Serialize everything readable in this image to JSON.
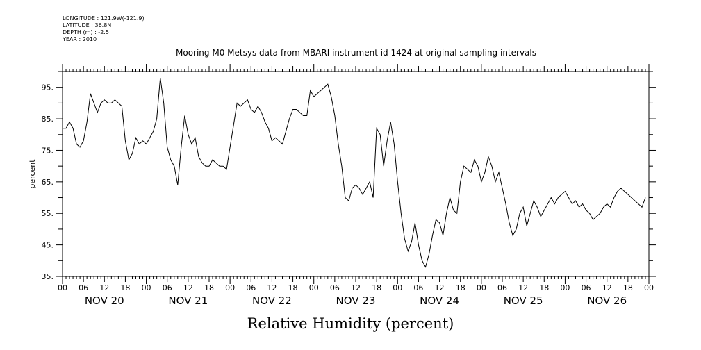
{
  "header": {
    "longitude": "LONGITUDE : 121.9W(-121.9)",
    "latitude": "LATITUDE : 36.8N",
    "depth": "DEPTH (m) : -2.5",
    "year": "YEAR : 2010"
  },
  "chart_data": {
    "type": "line",
    "title": "Mooring M0 Metsys data from MBARI instrument id 1424 at original sampling intervals",
    "xlabel": "Relative Humidity (percent)",
    "ylabel": "percent",
    "ylim": [
      35,
      100
    ],
    "y_ticks": [
      "35.",
      "45.",
      "55.",
      "65.",
      "75.",
      "85.",
      "95."
    ],
    "xlim_hours": [
      0,
      168
    ],
    "x_hour_labels": [
      "00",
      "06",
      "12",
      "18"
    ],
    "x_day_labels": [
      "NOV 20",
      "NOV 21",
      "NOV 22",
      "NOV 23",
      "NOV 24",
      "NOV 25",
      "NOV 26"
    ],
    "series": [
      {
        "x_hours": [
          0,
          1,
          2,
          3,
          4,
          5,
          6,
          7,
          8,
          9,
          10,
          11,
          12,
          13,
          14,
          15,
          16,
          17,
          18,
          19,
          20,
          21,
          22,
          23,
          24,
          25,
          26,
          27,
          28,
          29,
          30,
          31,
          32,
          33,
          34,
          35,
          36,
          37,
          38,
          39,
          40,
          41,
          42,
          43,
          44,
          45,
          46,
          47,
          48,
          49,
          50,
          51,
          52,
          53,
          54,
          55,
          56,
          57,
          58,
          59,
          60,
          61,
          62,
          63,
          64,
          65,
          66,
          67,
          68,
          69,
          70,
          71,
          72,
          73,
          74,
          75,
          76,
          77,
          78,
          79,
          80,
          81,
          82,
          83,
          84,
          85,
          86,
          87,
          88,
          89,
          90,
          91,
          92,
          93,
          94,
          95,
          96,
          97,
          98,
          99,
          100,
          101,
          102,
          103,
          104,
          105,
          106,
          107,
          108,
          109,
          110,
          111,
          112,
          113,
          114,
          115,
          116,
          117,
          118,
          119,
          120,
          121,
          122,
          123,
          124,
          125,
          126,
          127,
          128,
          129,
          130,
          131,
          132,
          133,
          134,
          135,
          136,
          137,
          138,
          139,
          140,
          141,
          142,
          143,
          144,
          145,
          146,
          147,
          148,
          149,
          150,
          151,
          152,
          153,
          154,
          155,
          156,
          157,
          158,
          159,
          160,
          161,
          162,
          163,
          164,
          165,
          166,
          167
        ],
        "values": [
          82,
          82,
          84,
          82,
          77,
          76,
          78,
          84,
          93,
          90,
          87,
          90,
          91,
          90,
          90,
          91,
          90,
          89,
          78,
          72,
          74,
          79,
          77,
          78,
          77,
          79,
          81,
          85,
          98,
          90,
          76,
          72,
          70,
          64,
          76,
          86,
          80,
          77,
          79,
          73,
          71,
          70,
          70,
          72,
          71,
          70,
          70,
          69,
          76,
          83,
          90,
          89,
          90,
          91,
          88,
          87,
          89,
          87,
          84,
          82,
          78,
          79,
          78,
          77,
          81,
          85,
          88,
          88,
          87,
          86,
          86,
          94,
          92,
          93,
          94,
          95,
          96,
          92,
          86,
          77,
          70,
          60,
          59,
          63,
          64,
          63,
          61,
          63,
          65,
          60,
          82,
          80,
          70,
          78,
          84,
          77,
          65,
          55,
          47,
          43,
          46,
          52,
          45,
          40,
          38,
          42,
          48,
          53,
          52,
          48,
          55,
          60,
          56,
          55,
          65,
          70,
          69,
          68,
          72,
          70,
          65,
          68,
          73,
          70,
          65,
          68,
          63,
          58,
          52,
          48,
          50,
          55,
          57,
          51,
          55,
          59,
          57,
          54,
          56,
          58,
          60,
          58,
          60,
          61,
          62,
          60,
          58,
          59,
          57,
          58,
          56,
          55,
          53,
          54,
          55,
          57,
          58,
          57,
          60,
          62,
          63,
          62,
          61,
          60,
          59,
          58,
          57,
          60
        ]
      }
    ]
  }
}
